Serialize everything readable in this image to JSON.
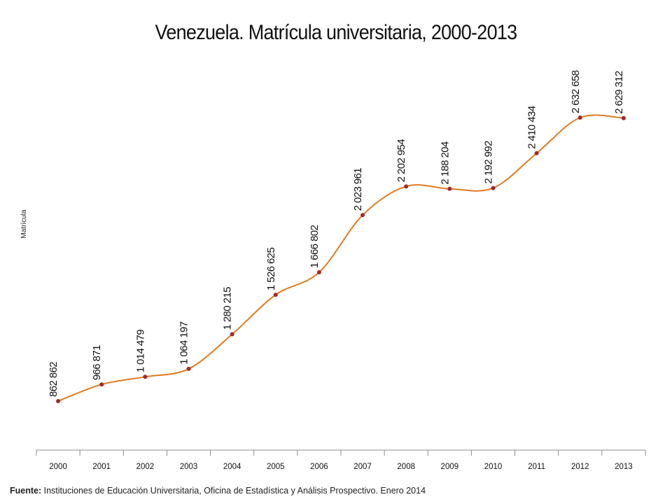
{
  "chart_data": {
    "type": "line",
    "title": "Venezuela. Matrícula universitaria, 2000-2013",
    "xlabel": "",
    "ylabel": "Matrícula",
    "categories": [
      "2000",
      "2001",
      "2002",
      "2003",
      "2004",
      "2005",
      "2006",
      "2007",
      "2008",
      "2009",
      "2010",
      "2011",
      "2012",
      "2013"
    ],
    "series": [
      {
        "values": [
          862862,
          966871,
          1014479,
          1064197,
          1280215,
          1526625,
          1666802,
          2023961,
          2202954,
          2188204,
          2192992,
          2410434,
          2632658,
          2629312
        ],
        "labels": [
          "862 862",
          "966 871",
          "1 014 479",
          "1 064 197",
          "1 280 215",
          "1 526 625",
          "1 666 802",
          "2 023 961",
          "2 202 954",
          "2 188 204",
          "2 192 992",
          "2 410 434",
          "2 632 658",
          "2 629 312"
        ]
      }
    ],
    "line_color": "#e07b1f",
    "marker_color": "#a0282d",
    "grid": false,
    "smooth": true
  },
  "source": {
    "label": "Fuente:",
    "text": " Instituciones de Educación Universitaria, Oficina de Estadística y Análisis Prospectivo. Enero 2014"
  }
}
